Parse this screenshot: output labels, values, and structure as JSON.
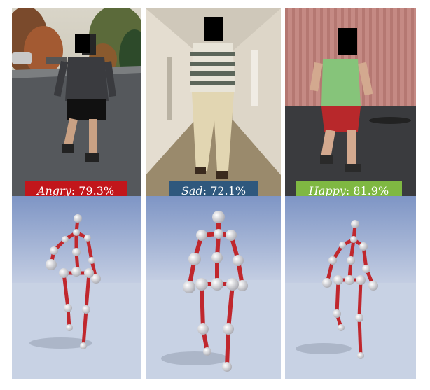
{
  "panels": [
    {
      "scene": "outdoor-street",
      "emotion_label": "Angry",
      "confidence": "79.3%",
      "label_color": "#c2161b"
    },
    {
      "scene": "indoor-hallway",
      "emotion_label": "Sad",
      "confidence": "72.1%",
      "label_color": "#2f587d"
    },
    {
      "scene": "indoor-curtain-room",
      "emotion_label": "Happy",
      "confidence": "81.9%",
      "label_color": "#7fb842"
    }
  ],
  "skeleton_colors": {
    "bone": "#c0272d",
    "joint": "#dcdde4",
    "sky": "#8fa3c9",
    "ground": "#c9d3e4"
  }
}
